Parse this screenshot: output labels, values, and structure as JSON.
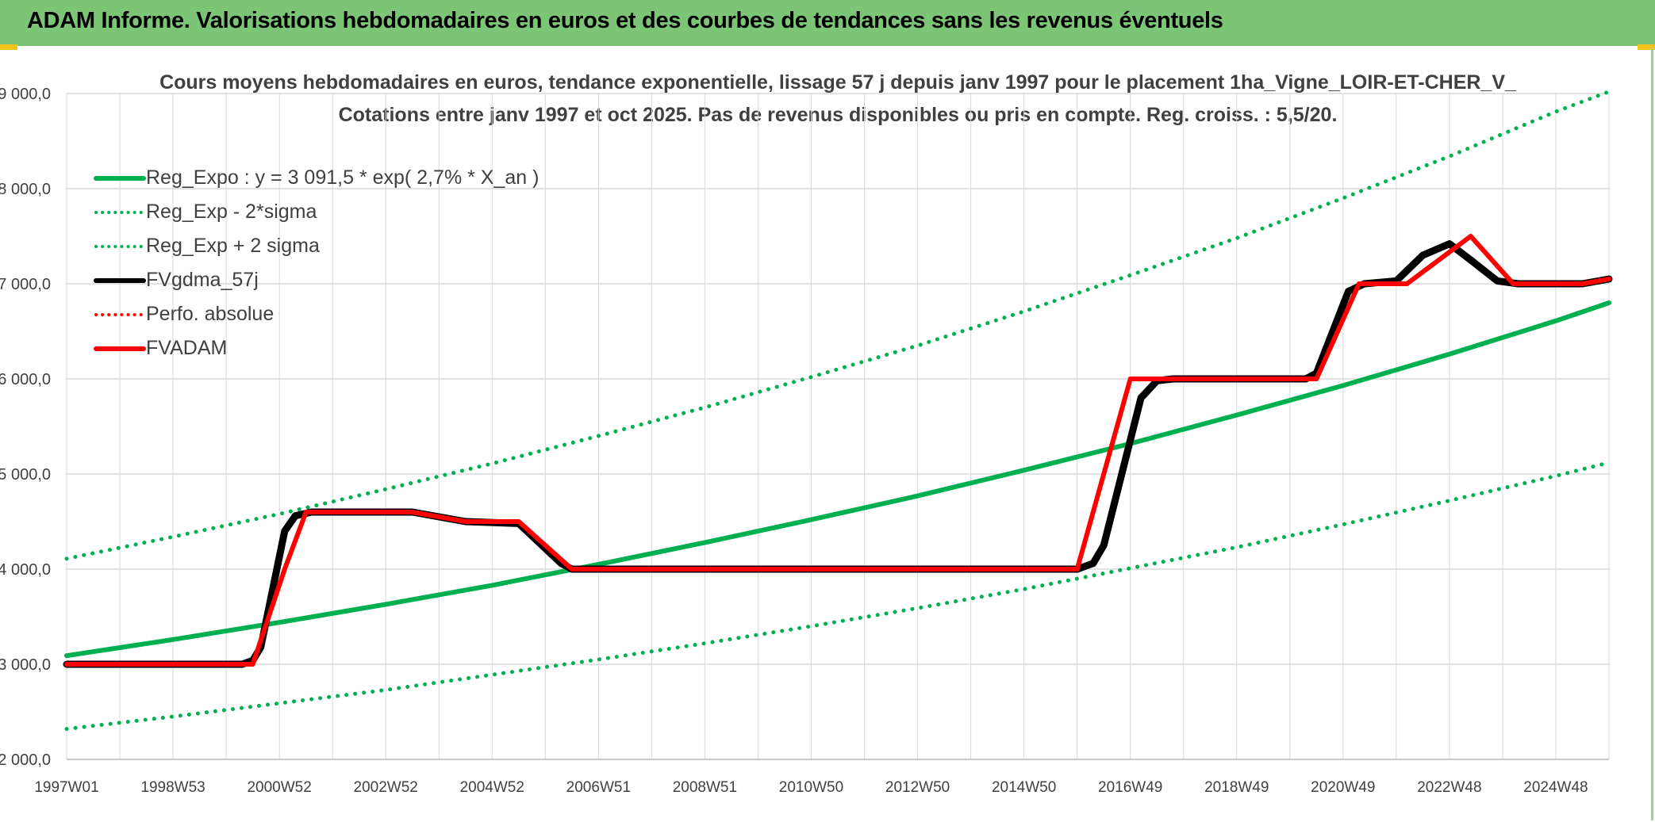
{
  "banner": {
    "title": "ADAM Informe. Valorisations hebdomadaires en euros et des courbes de tendances sans les revenus éventuels"
  },
  "colors": {
    "banner_bg": "#7cc576",
    "trend_green": "#00b050",
    "fv_black": "#000000",
    "fvadam_red": "#ff0000",
    "grid": "#d9d9d9",
    "text": "#404040"
  },
  "chart_data": {
    "type": "line",
    "title": "Cours moyens hebdomadaires en euros, tendance exponentielle, lissage 57 j depuis janv 1997 pour le placement 1ha_Vigne_LOIR-ET-CHER_V_",
    "subtitle": "Cotations entre janv 1997 et oct 2025. Pas de revenus disponibles ou pris en compte. Reg. croiss. : 5,5/20.",
    "x_tick_labels": [
      "1997W01",
      "1998W53",
      "2000W52",
      "2002W52",
      "2004W52",
      "2006W51",
      "2008W51",
      "2010W50",
      "2012W50",
      "2014W50",
      "2016W49",
      "2018W49",
      "2020W49",
      "2022W48",
      "2024W48"
    ],
    "x_tick_years": [
      1997.0,
      1999.0,
      2001.0,
      2003.0,
      2005.0,
      2007.0,
      2009.0,
      2011.0,
      2013.0,
      2015.0,
      2017.0,
      2019.0,
      2021.0,
      2023.0,
      2025.0
    ],
    "x_range_years": [
      1997.0,
      2026.0
    ],
    "y_ticks": [
      2000,
      3000,
      4000,
      5000,
      6000,
      7000,
      8000,
      9000
    ],
    "y_tick_labels": [
      "2 000,0",
      "3 000,0",
      "4 000,0",
      "5 000,0",
      "6 000,0",
      "7 000,0",
      "8 000,0",
      "9 000,0"
    ],
    "ylim": [
      2000,
      9000
    ],
    "grid": true,
    "legend_position": "top-left",
    "series": [
      {
        "name": "Reg_Expo : y = 3 091,5 * exp( 2,7% *  X_an )",
        "style": "solid",
        "color": "#00b050",
        "x": [
          1997.0,
          1999.0,
          2001.0,
          2003.0,
          2005.0,
          2007.0,
          2009.0,
          2011.0,
          2013.0,
          2015.0,
          2017.0,
          2019.0,
          2021.0,
          2023.0,
          2025.0,
          2026.0
        ],
        "y": [
          3090,
          3260,
          3440,
          3630,
          3830,
          4050,
          4280,
          4520,
          4770,
          5040,
          5320,
          5620,
          5930,
          6260,
          6610,
          6800
        ]
      },
      {
        "name": "Reg_Exp - 2*sigma",
        "style": "dotted",
        "color": "#00b050",
        "x": [
          1997.0,
          1999.0,
          2001.0,
          2003.0,
          2005.0,
          2007.0,
          2009.0,
          2011.0,
          2013.0,
          2015.0,
          2017.0,
          2019.0,
          2021.0,
          2023.0,
          2025.0,
          2026.0
        ],
        "y": [
          2320,
          2450,
          2590,
          2730,
          2890,
          3050,
          3220,
          3400,
          3590,
          3790,
          4010,
          4230,
          4470,
          4720,
          4980,
          5120
        ]
      },
      {
        "name": "Reg_Exp + 2 sigma",
        "style": "dotted",
        "color": "#00b050",
        "x": [
          1997.0,
          1999.0,
          2001.0,
          2003.0,
          2005.0,
          2007.0,
          2009.0,
          2011.0,
          2013.0,
          2015.0,
          2017.0,
          2019.0,
          2021.0,
          2023.0,
          2025.0,
          2026.0
        ],
        "y": [
          4110,
          4340,
          4580,
          4840,
          5110,
          5400,
          5700,
          6020,
          6350,
          6710,
          7090,
          7480,
          7900,
          8340,
          8810,
          9020
        ]
      },
      {
        "name": "FVgdma_57j",
        "style": "solid",
        "color": "#000000",
        "x": [
          1997.0,
          2000.3,
          2000.5,
          2000.65,
          2001.1,
          2001.3,
          2001.6,
          2002.0,
          2003.5,
          2004.5,
          2005.5,
          2006.3,
          2006.5,
          2015.0,
          2016.0,
          2016.3,
          2016.5,
          2017.2,
          2017.5,
          2017.8,
          2020.3,
          2020.5,
          2021.1,
          2021.4,
          2022.0,
          2022.5,
          2023.0,
          2023.4,
          2023.9,
          2024.3,
          2025.5,
          2026.0
        ],
        "y": [
          3000,
          3000,
          3040,
          3180,
          4400,
          4560,
          4600,
          4600,
          4600,
          4500,
          4480,
          4060,
          4000,
          4000,
          4000,
          4060,
          4250,
          5800,
          5980,
          6000,
          6000,
          6060,
          6920,
          7000,
          7030,
          7300,
          7420,
          7250,
          7030,
          7000,
          7000,
          7050
        ]
      },
      {
        "name": "Perfo. absolue",
        "style": "dotted",
        "color": "#ff0000",
        "x": [],
        "y": []
      },
      {
        "name": "FVADAM",
        "style": "solid",
        "color": "#ff0000",
        "x": [
          1997.0,
          2000.5,
          2001.1,
          2001.5,
          2003.5,
          2004.5,
          2005.5,
          2006.5,
          2016.0,
          2017.0,
          2017.5,
          2020.5,
          2021.3,
          2022.2,
          2023.4,
          2024.2,
          2025.5,
          2026.0
        ],
        "y": [
          3000,
          3000,
          4000,
          4600,
          4600,
          4500,
          4500,
          4000,
          4000,
          6000,
          6000,
          6000,
          7000,
          7000,
          7500,
          7000,
          7000,
          7050
        ]
      }
    ]
  }
}
